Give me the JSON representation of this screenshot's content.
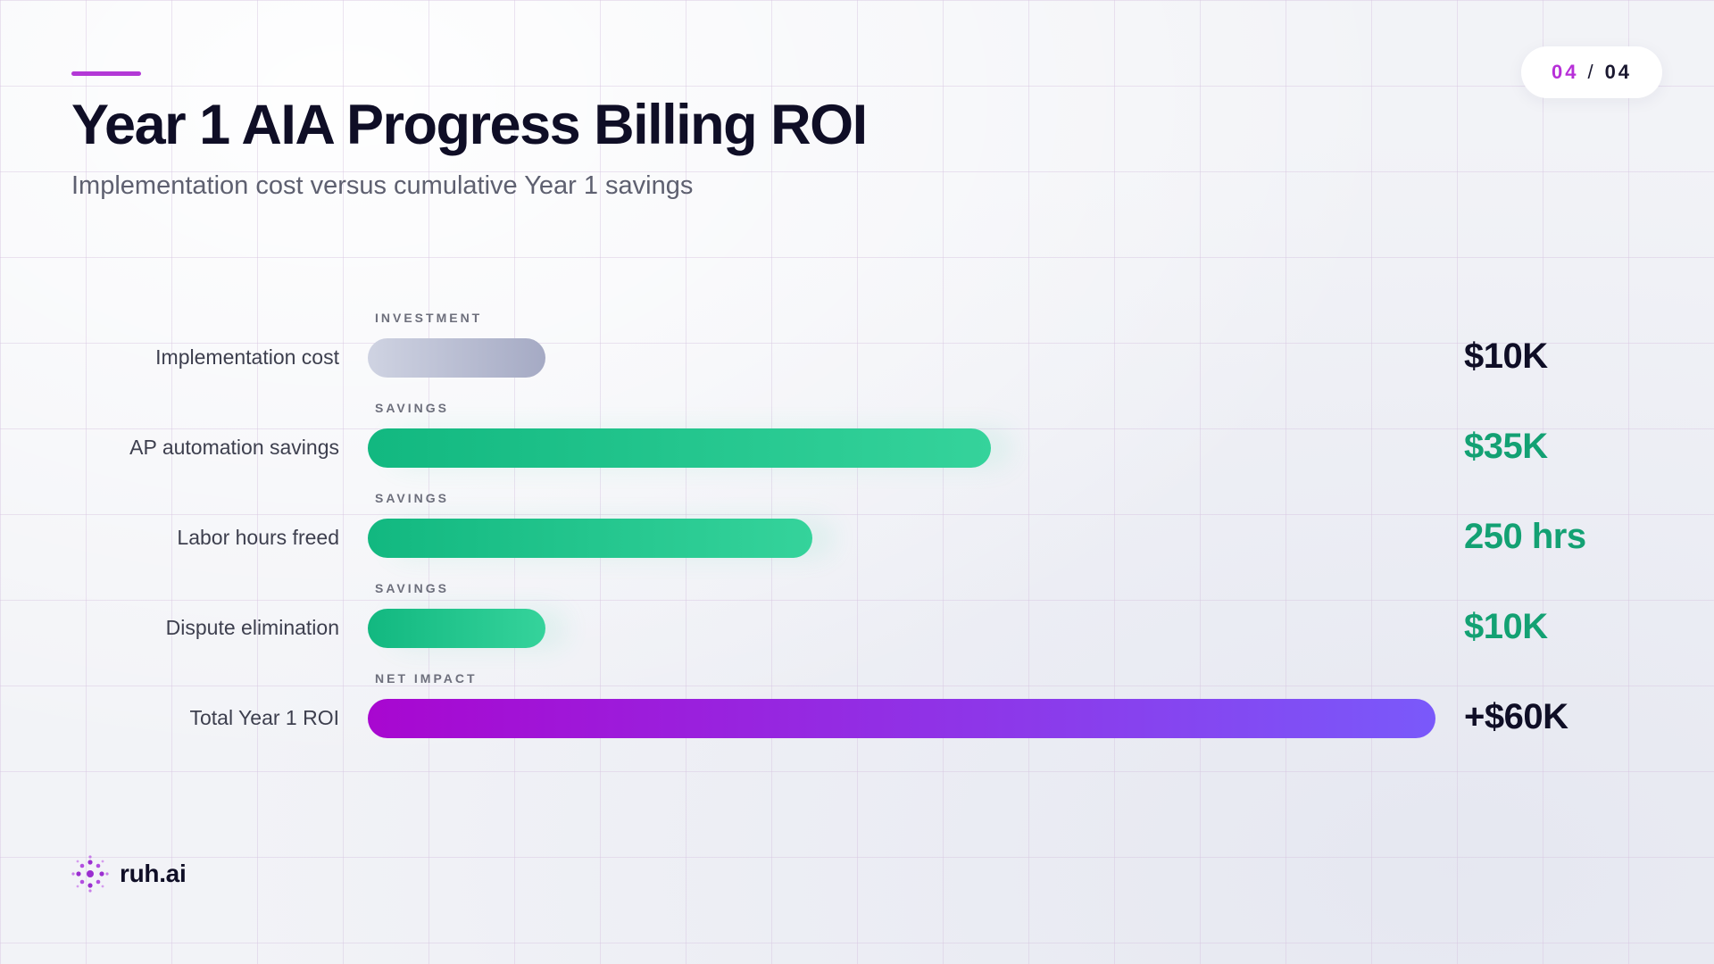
{
  "slide": {
    "page_current": "04",
    "page_separator": "/",
    "page_total": "04",
    "title": "Year 1 AIA Progress Billing ROI",
    "subtitle": "Implementation cost versus cumulative Year 1 savings"
  },
  "brand": {
    "name": "ruh.ai",
    "icon": "dotted-radial-logo-icon"
  },
  "colors": {
    "accent": "#b338d6",
    "investment": "#a5aac4",
    "savings": "#1fc48b",
    "net_impact_start": "#a807d0",
    "net_impact_end": "#7a59fa",
    "value_green": "#13a173",
    "value_dark": "#0f0e26"
  },
  "chart_data": {
    "type": "bar",
    "orientation": "horizontal",
    "title": "Year 1 AIA Progress Billing ROI",
    "subtitle": "Implementation cost versus cumulative Year 1 savings",
    "categories": [
      "Implementation cost",
      "AP automation savings",
      "Labor hours freed",
      "Dispute elimination",
      "Total Year 1 ROI"
    ],
    "groups": [
      "INVESTMENT",
      "SAVINGS",
      "SAVINGS",
      "SAVINGS",
      "NET IMPACT"
    ],
    "value_labels": [
      "$10K",
      "$35K",
      "250 hrs",
      "$10K",
      "+$60K"
    ],
    "values": [
      10,
      35,
      25,
      10,
      60
    ],
    "bar_kinds": [
      "investment",
      "savings",
      "savings",
      "savings",
      "net"
    ],
    "value_tones": [
      "dark",
      "green",
      "green",
      "green",
      "dark"
    ],
    "xlim": [
      0,
      60
    ],
    "grid": true,
    "legend": "none"
  }
}
